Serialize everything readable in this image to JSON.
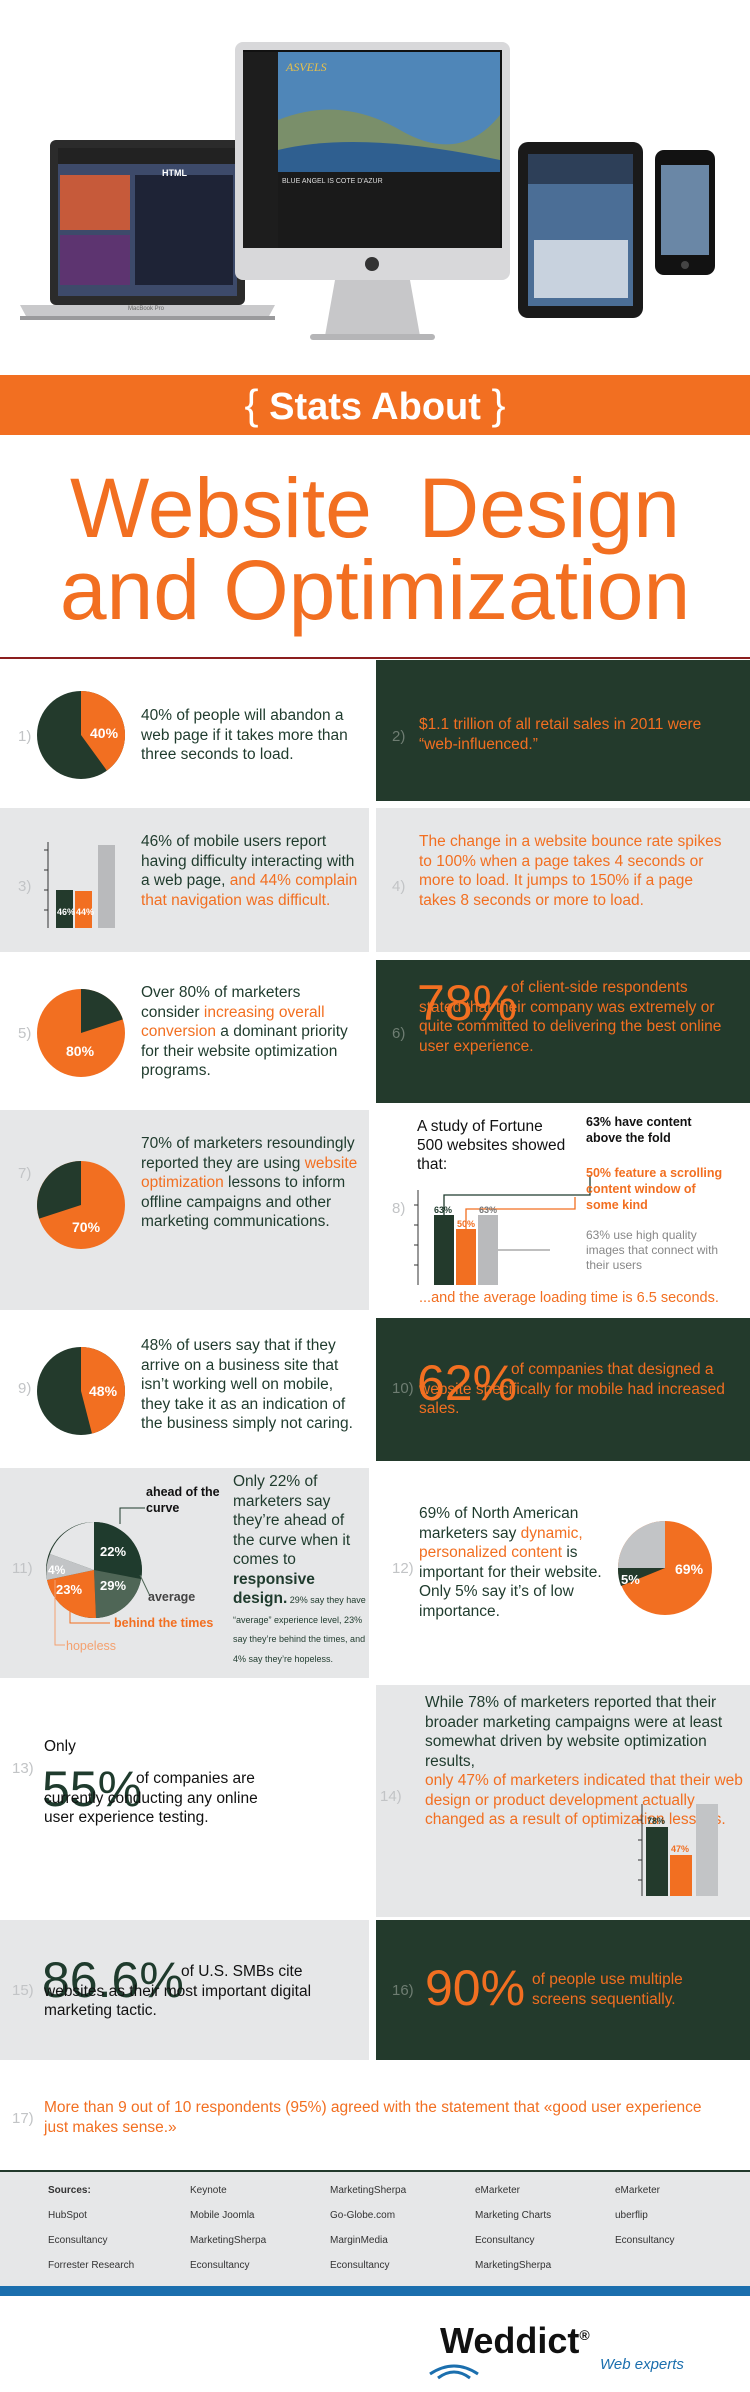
{
  "hero": {
    "screen_logo": "ASVELS",
    "screen_heading": "BLUE ANGEL IS COTE D'AZUR",
    "laptop_badge": "HTML",
    "laptop_caption": "MacBook Pro"
  },
  "header": {
    "banner_open": "{",
    "banner_text": "Stats About",
    "banner_close": "}",
    "title_line1": "Website  Design",
    "title_line2": "and Optimization"
  },
  "stats": {
    "s1": {
      "num": "1)",
      "pct_label": "40%",
      "text": "40% of people will abandon a web page if it takes more than three seconds to load."
    },
    "s2": {
      "num": "2)",
      "text": "$1.1 trillion of all retail sales in 2011 were “web-influenced.”"
    },
    "s3": {
      "num": "3)",
      "bar1": "46%",
      "bar2": "44%",
      "text_a": "46% of mobile users report having difficulty interacting with a web page, ",
      "text_b": "and 44% complain that navigation was difficult."
    },
    "s4": {
      "num": "4)",
      "text": "The change in a website bounce rate spikes to 100% when a page takes 4 seconds or more to load. It jumps to 150% if a page takes 8 seconds or more to load."
    },
    "s5": {
      "num": "5)",
      "pct_label": "80%",
      "text_a": "Over 80% of marketers consider ",
      "text_b": "increasing overall conversion",
      "text_c": " a dominant priority for their website optimization programs."
    },
    "s6": {
      "num": "6)",
      "big": "78%",
      "text": "of client-side respondents stated that their company was extremely or quite committed to delivering the best online user experience."
    },
    "s7": {
      "num": "7)",
      "pct_label": "70%",
      "text_a": "70% of marketers resoundingly reported they are using ",
      "text_b": "website optimization",
      "text_c": " lessons to inform offline campaigns and other marketing communications."
    },
    "s8": {
      "num": "8)",
      "intro": "A study of Fortune 500 websites showed that:",
      "note1": "63% have content above the fold",
      "note2": "50% feature a scrolling content window of some kind",
      "note3": "63% use high quality images that connect with their users",
      "bar1": "63%",
      "bar2": "50%",
      "bar3": "63%",
      "footer": "...and the average loading time is 6.5 seconds."
    },
    "s9": {
      "num": "9)",
      "pct_label": "48%",
      "text": "48% of users say that if they arrive on a business site that isn’t working well on mobile, they take it as an indication of the business simply not caring."
    },
    "s10": {
      "num": "10)",
      "big": "62%",
      "text": "of companies that designed a website specifically for mobile had increased sales."
    },
    "s11": {
      "num": "11)",
      "lab_ahead": "ahead of the curve",
      "lab_average": "average",
      "lab_behind": "behind the times",
      "lab_hopeless": "hopeless",
      "p22": "22%",
      "p29": "29%",
      "p23": "23%",
      "p4": "4%",
      "text_a": "Only 22% of marketers say they’re ahead of the curve when it comes to ",
      "text_b": "responsive design.",
      "small": " 29% say they have “average” experience level, 23% say they’re behind the times, and 4% say they’re hopeless."
    },
    "s12": {
      "num": "12)",
      "p69": "69%",
      "p5": "5%",
      "text_a": "69% of North American marketers say ",
      "text_b": "dynamic, personalized content",
      "text_c": " is important for their website. Only 5% say it’s of low importance."
    },
    "s13": {
      "num": "13)",
      "only": "Only",
      "big": "55%",
      "text": "of companies are currently conducting any online user experience testing."
    },
    "s14": {
      "num": "14)",
      "bar1": "78%",
      "bar2": "47%",
      "text_a": "While 78% of marketers reported that their broader marketing campaigns were at least somewhat driven by website optimization results, ",
      "text_b": "only 47% of marketers indicated that their web design or product development actually changed as a result of optimization lessons."
    },
    "s15": {
      "num": "15)",
      "big": "86.6%",
      "text": "of U.S. SMBs cite websites as their most important digital marketing tactic."
    },
    "s16": {
      "num": "16)",
      "big": "90%",
      "text": "of people use multiple screens sequentially."
    },
    "s17": {
      "num": "17)",
      "text": "More than 9 out of 10 respondents (95%) agreed with the statement that «good user experience just makes sense.»"
    }
  },
  "sources": {
    "title": "Sources:",
    "col1": [
      "HubSpot",
      "Econsultancy",
      "Forrester Research"
    ],
    "col2": [
      "Keynote",
      "Mobile Joomla",
      "MarketingSherpa",
      "Econsultancy"
    ],
    "col3": [
      "MarketingSherpa",
      "Go-Globe.com",
      "MarginMedia",
      "Econsultancy"
    ],
    "col4": [
      "eMarketer",
      "Marketing Charts",
      "Econsultancy",
      "MarketingSherpa"
    ],
    "col5": [
      "eMarketer",
      "uberflip",
      "Econsultancy"
    ]
  },
  "footer": {
    "brand": "Weddict",
    "reg": "®",
    "tagline": "Web experts"
  },
  "colors": {
    "orange": "#f26f21",
    "dark_green": "#233a2c",
    "light_gray": "#e6e7e8",
    "blue": "#1b6fae"
  }
}
